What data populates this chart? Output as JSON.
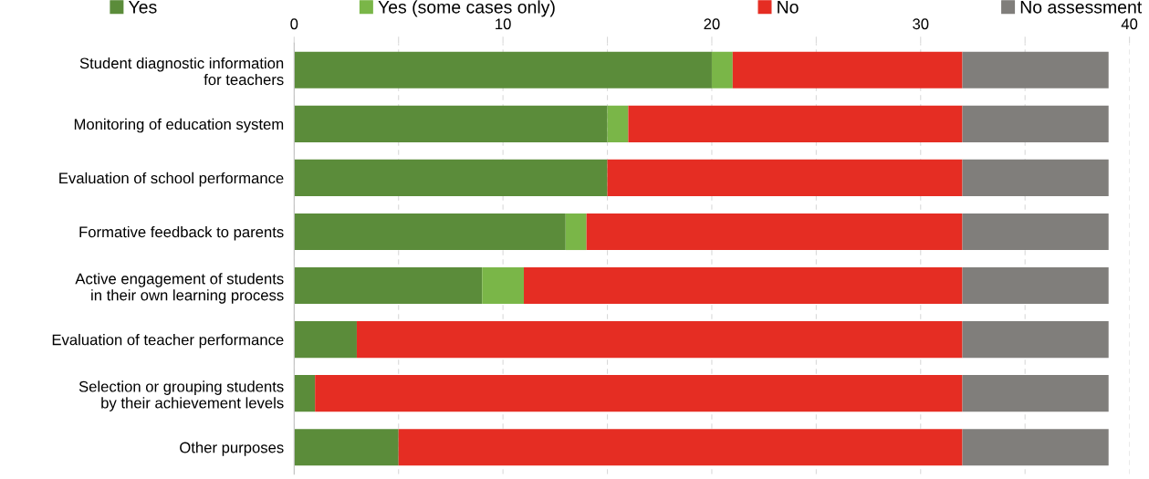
{
  "chart_data": {
    "type": "bar",
    "orientation": "horizontal",
    "stacked": true,
    "categories": [
      "Student diagnostic information\nfor teachers",
      "Monitoring of education system",
      "Evaluation of school performance",
      "Formative feedback to parents",
      "Active engagement of students\nin their own learning process",
      "Evaluation of teacher performance",
      "Selection or grouping students\nby their achievement levels",
      "Other purposes"
    ],
    "series": [
      {
        "name": "Yes",
        "color": "#5b8c3a",
        "values": [
          20,
          15,
          15,
          13,
          9,
          3,
          1,
          5
        ]
      },
      {
        "name": "Yes (some cases only)",
        "color": "#7ab648",
        "values": [
          1,
          1,
          0,
          1,
          2,
          0,
          0,
          0
        ]
      },
      {
        "name": "No",
        "color": "#e52d23",
        "values": [
          11,
          16,
          17,
          18,
          21,
          29,
          31,
          27
        ]
      },
      {
        "name": "No assessment",
        "color": "#807e7b",
        "values": [
          7,
          7,
          7,
          7,
          7,
          7,
          7,
          7
        ]
      }
    ],
    "xlim": [
      0,
      40
    ],
    "xticks": [
      0,
      {
        "value": 5,
        "label": null
      },
      10,
      {
        "value": 15,
        "label": null
      },
      20,
      {
        "value": 25,
        "label": null
      },
      30,
      {
        "value": 35,
        "label": null
      },
      40
    ],
    "grid": "x",
    "legend": "top"
  }
}
